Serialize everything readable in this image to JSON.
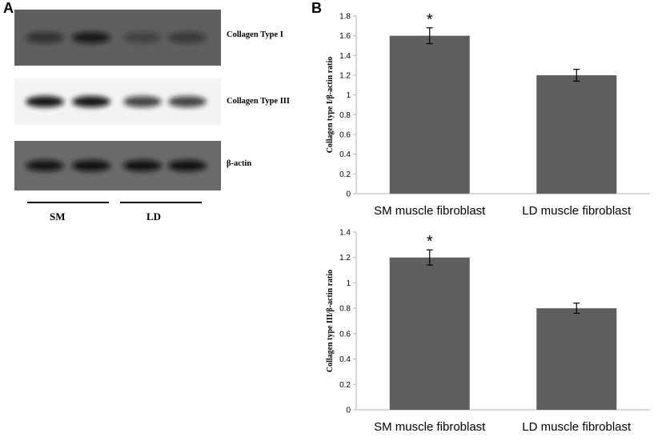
{
  "panel_a": {
    "letter": "A",
    "blots": [
      {
        "label": "Collagen Type I",
        "background": "#5f5f5f",
        "bands": [
          0.55,
          0.85,
          0.35,
          0.45
        ]
      },
      {
        "label": "Collagen Type III",
        "background": "#f3f3f3",
        "bands": [
          0.95,
          0.95,
          0.75,
          0.75
        ]
      },
      {
        "label": "β-actin",
        "background": "#6a6a6a",
        "bands": [
          0.9,
          0.95,
          0.95,
          0.95
        ]
      }
    ],
    "groups": [
      {
        "label": "SM"
      },
      {
        "label": "LD"
      }
    ]
  },
  "panel_b": {
    "letter": "B"
  },
  "colors": {
    "bar": "#5f5f5f",
    "axis": "#b3b3b3",
    "band": "#101010"
  },
  "chart_data": [
    {
      "type": "bar",
      "categories": [
        "SM muscle fibroblast",
        "LD muscle fibroblast"
      ],
      "values": [
        1.6,
        1.2
      ],
      "errors": [
        0.08,
        0.06
      ],
      "significance": [
        "*",
        ""
      ],
      "ylabel": "Collagen type I/β-actin ratio",
      "ylim": [
        0,
        1.8
      ],
      "yticks": [
        0,
        0.2,
        0.4,
        0.6,
        0.8,
        1,
        1.2,
        1.4,
        1.6,
        1.8
      ],
      "grid": false
    },
    {
      "type": "bar",
      "categories": [
        "SM muscle fibroblast",
        "LD muscle fibroblast"
      ],
      "values": [
        1.2,
        0.8
      ],
      "errors": [
        0.06,
        0.04
      ],
      "significance": [
        "*",
        ""
      ],
      "ylabel": "Collagen type III/β-actin ratio",
      "ylim": [
        0,
        1.4
      ],
      "yticks": [
        0,
        0.2,
        0.4,
        0.6,
        0.8,
        1,
        1.2,
        1.4
      ],
      "grid": false
    }
  ]
}
